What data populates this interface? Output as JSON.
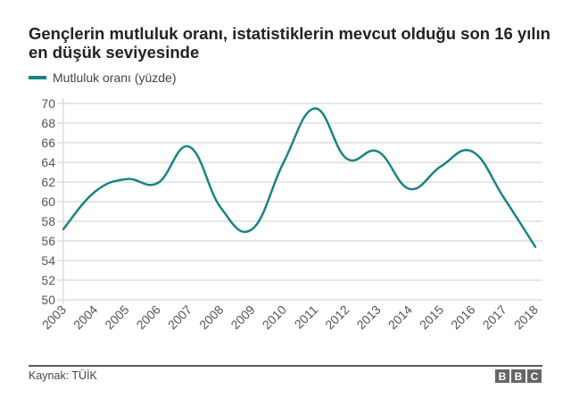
{
  "chart_data": {
    "type": "line",
    "title": "Gençlerin mutluluk oranı, istatistiklerin mevcut olduğu son 16 yılın en düşük seviyesinde",
    "xlabel": "",
    "ylabel": "",
    "x": [
      "2003",
      "2004",
      "2005",
      "2006",
      "2007",
      "2008",
      "2009",
      "2010",
      "2011",
      "2012",
      "2013",
      "2014",
      "2015",
      "2016",
      "2017",
      "2018"
    ],
    "series": [
      {
        "name": "Mutluluk oranı (yüzde)",
        "color": "#1a8484",
        "values": [
          57.2,
          61.0,
          62.3,
          61.9,
          65.6,
          59.4,
          57.2,
          64.0,
          69.5,
          64.4,
          65.1,
          61.3,
          63.6,
          65.1,
          60.4,
          55.4
        ]
      }
    ],
    "ylim": [
      50,
      70
    ],
    "yticks": [
      50,
      52,
      54,
      56,
      58,
      60,
      62,
      64,
      66,
      68,
      70
    ],
    "grid": true,
    "legend_position": "top-left"
  },
  "header": {
    "title": "Gençlerin mutluluk oranı, istatistiklerin mevcut olduğu son 16 yılın en düşük seviyesinde",
    "legend_label": "Mutluluk oranı (yüzde)"
  },
  "footer": {
    "source": "Kaynak: TÜİK",
    "logo_letters": [
      "B",
      "B",
      "C"
    ]
  }
}
